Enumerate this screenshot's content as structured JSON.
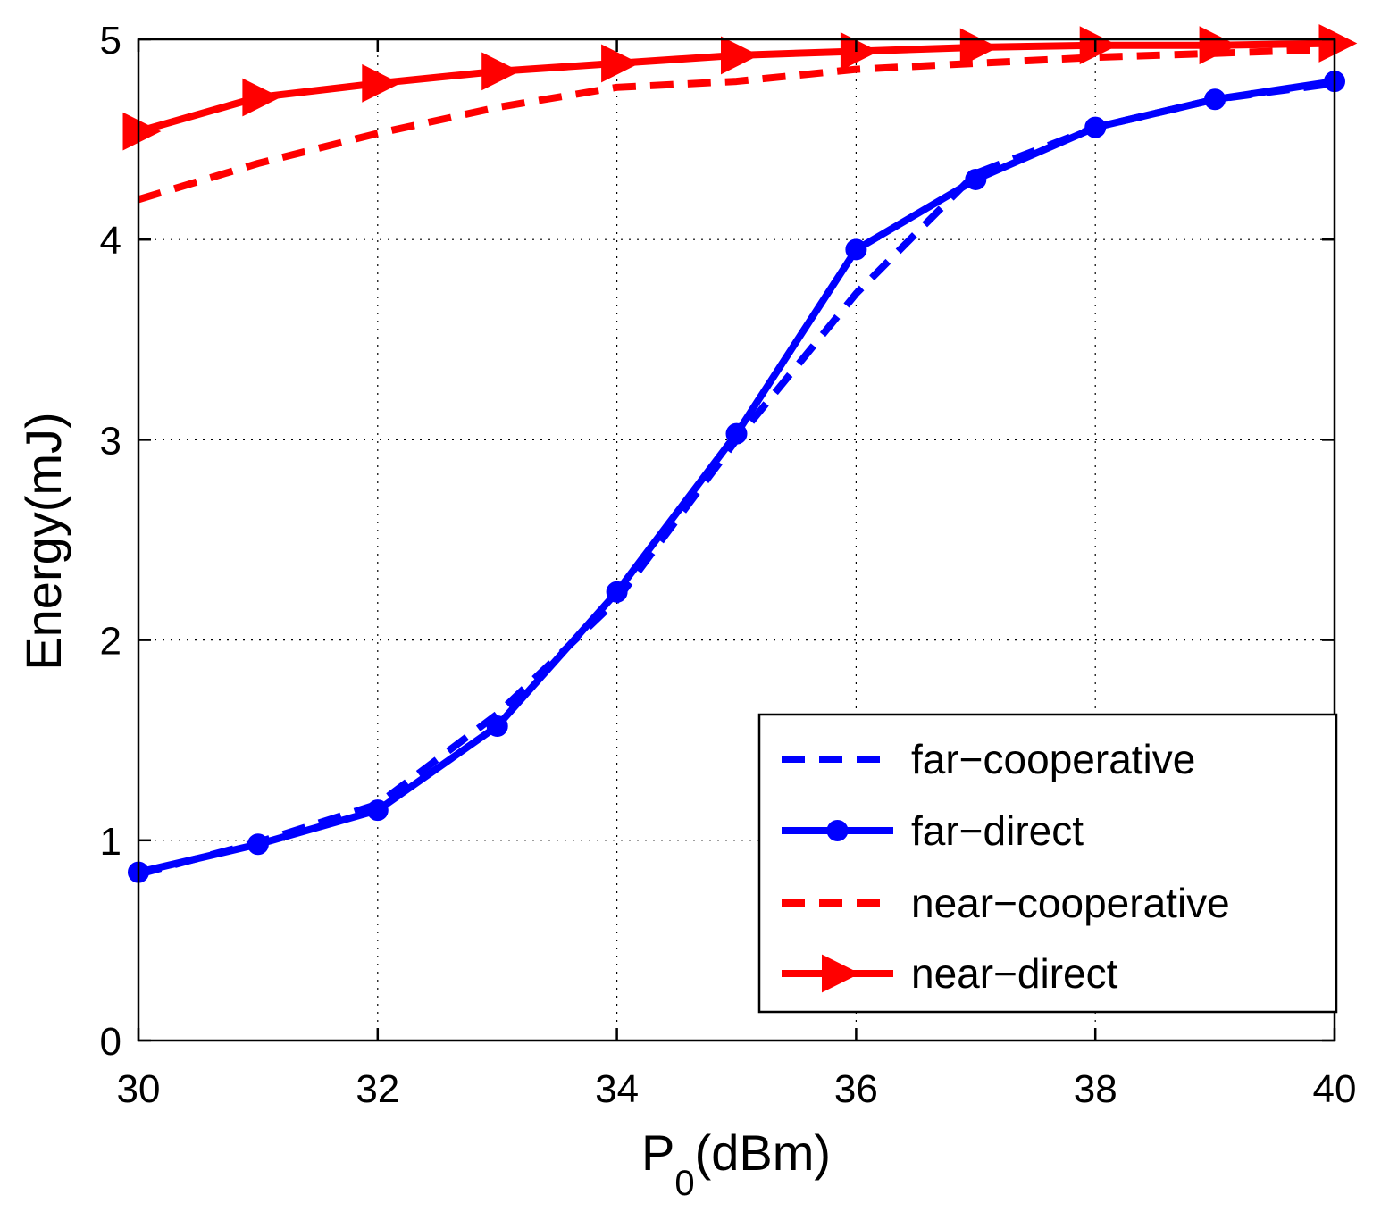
{
  "chart_data": {
    "type": "line",
    "xlabel": "P",
    "xlabel_subscript": "0",
    "xlabel_unit": "(dBm)",
    "ylabel": "Energy(mJ)",
    "xlim": [
      30,
      40
    ],
    "ylim": [
      0,
      5
    ],
    "xticks": [
      "30",
      "32",
      "34",
      "36",
      "38",
      "40"
    ],
    "yticks": [
      "0",
      "1",
      "2",
      "3",
      "4",
      "5"
    ],
    "grid": true,
    "legend_position": "bottom-right",
    "x": [
      30,
      31,
      32,
      33,
      34,
      35,
      36,
      37,
      38,
      39,
      40
    ],
    "series": [
      {
        "name": "far−cooperative",
        "color": "#0000ff",
        "style": "dashed",
        "marker": "none",
        "values": [
          0.83,
          0.99,
          1.18,
          1.63,
          2.2,
          3.0,
          3.73,
          4.33,
          4.56,
          4.7,
          4.78
        ]
      },
      {
        "name": "far−direct",
        "color": "#0000ff",
        "style": "solid",
        "marker": "circle",
        "values": [
          0.84,
          0.98,
          1.15,
          1.57,
          2.24,
          3.03,
          3.95,
          4.3,
          4.56,
          4.7,
          4.79
        ]
      },
      {
        "name": "near−cooperative",
        "color": "#ff0000",
        "style": "dashed",
        "marker": "none",
        "values": [
          4.2,
          4.38,
          4.53,
          4.66,
          4.76,
          4.79,
          4.85,
          4.88,
          4.91,
          4.93,
          4.95
        ]
      },
      {
        "name": "near−direct",
        "color": "#ff0000",
        "style": "solid",
        "marker": "triangle-right",
        "values": [
          4.54,
          4.71,
          4.78,
          4.84,
          4.88,
          4.92,
          4.94,
          4.96,
          4.97,
          4.97,
          4.98
        ]
      }
    ]
  }
}
